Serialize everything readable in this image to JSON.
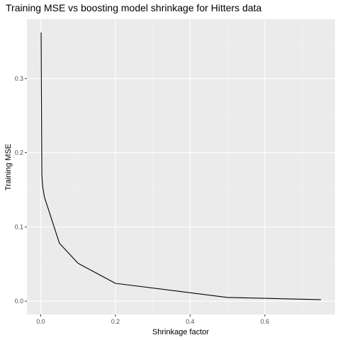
{
  "chart_data": {
    "type": "line",
    "title": "Training MSE vs boosting model shrinkage for Hitters data",
    "xlabel": "Shrinkage factor",
    "ylabel": "Training MSE",
    "xlim": [
      -0.037,
      0.788
    ],
    "ylim": [
      -0.018,
      0.38
    ],
    "x_ticks": [
      0.0,
      0.2,
      0.4,
      0.6
    ],
    "x_tick_labels": [
      "0.0",
      "0.2",
      "0.4",
      "0.6"
    ],
    "y_ticks": [
      0.0,
      0.1,
      0.2,
      0.3
    ],
    "y_tick_labels": [
      "0.0",
      "0.1",
      "0.2",
      "0.3"
    ],
    "grid": true,
    "series": [
      {
        "x": [
          0.001,
          0.002,
          0.003,
          0.005,
          0.01,
          0.05,
          0.1,
          0.2,
          0.5,
          0.75
        ],
        "y": [
          0.362,
          0.26,
          0.17,
          0.155,
          0.14,
          0.078,
          0.051,
          0.024,
          0.005,
          0.002
        ],
        "color": "#000000"
      }
    ]
  }
}
